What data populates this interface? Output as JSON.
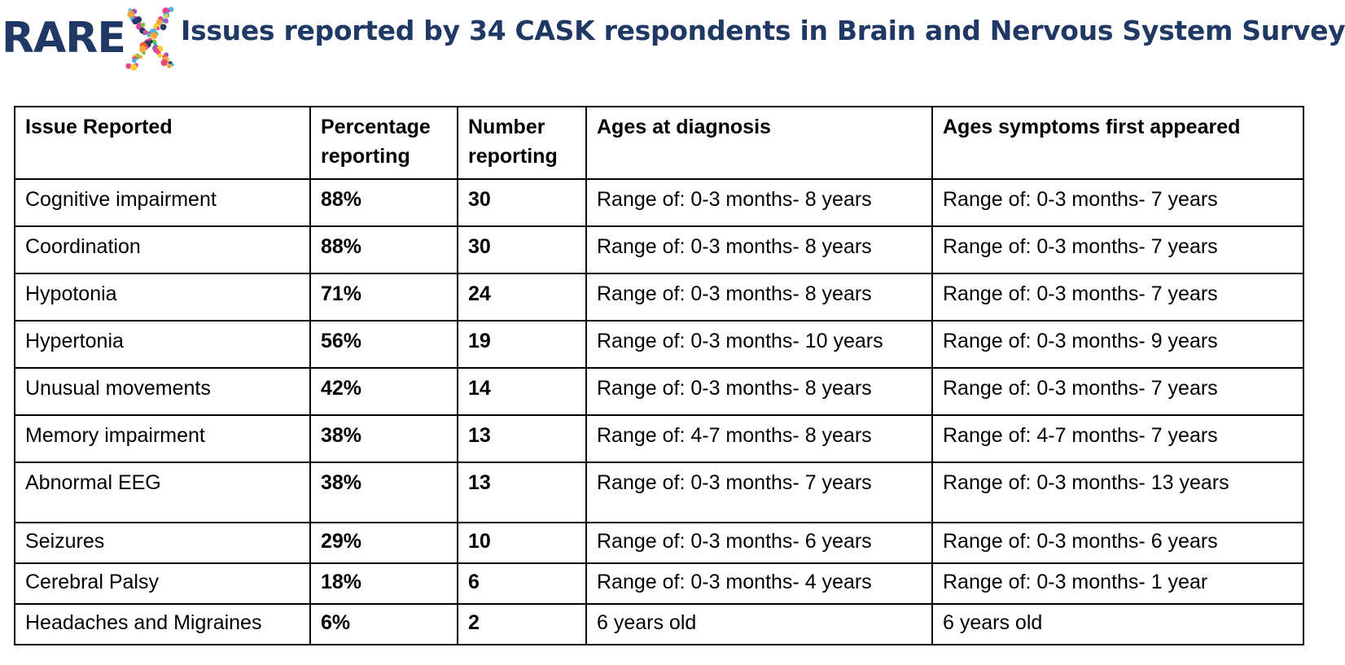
{
  "header": {
    "logo_text": "RARE",
    "logo_x_icon": "colorful-x-logo-icon",
    "title": "Issues reported by 34 CASK respondents in Brain and Nervous System Survey"
  },
  "colors": {
    "title": "#1f3864",
    "logo": "#1f3864"
  },
  "table": {
    "headers": [
      "Issue Reported",
      "Percentage reporting",
      "Number reporting",
      "Ages at diagnosis",
      "Ages symptoms first appeared"
    ],
    "rows": [
      [
        "Cognitive impairment",
        "88%",
        "30",
        "Range of: 0-3 months- 8 years",
        "Range of: 0-3 months- 7 years"
      ],
      [
        "Coordination",
        "88%",
        "30",
        "Range of: 0-3 months- 8 years",
        "Range of: 0-3 months- 7 years"
      ],
      [
        "Hypotonia",
        "71%",
        "24",
        "Range of: 0-3 months- 8 years",
        "Range of: 0-3 months- 7 years"
      ],
      [
        "Hypertonia",
        "56%",
        "19",
        "Range of: 0-3 months- 10 years",
        "Range of: 0-3 months- 9 years"
      ],
      [
        "Unusual movements",
        "42%",
        "14",
        "Range of: 0-3 months- 8 years",
        "Range of: 0-3 months- 7 years"
      ],
      [
        "Memory impairment",
        "38%",
        "13",
        "Range of: 4-7 months- 8 years",
        "Range of: 4-7 months- 7 years"
      ],
      [
        "Abnormal EEG",
        "38%",
        "13",
        "Range of: 0-3 months- 7 years",
        "Range of: 0-3 months- 13 years"
      ],
      [
        "Seizures",
        "29%",
        "10",
        "Range of: 0-3 months- 6 years",
        "Range of: 0-3 months- 6 years"
      ],
      [
        "Cerebral Palsy",
        "18%",
        "6",
        "Range of: 0-3 months- 4 years",
        "Range of: 0-3 months- 1 year"
      ],
      [
        "Headaches and Migraines",
        "6%",
        "2",
        "6 years old",
        "6 years old"
      ]
    ]
  }
}
